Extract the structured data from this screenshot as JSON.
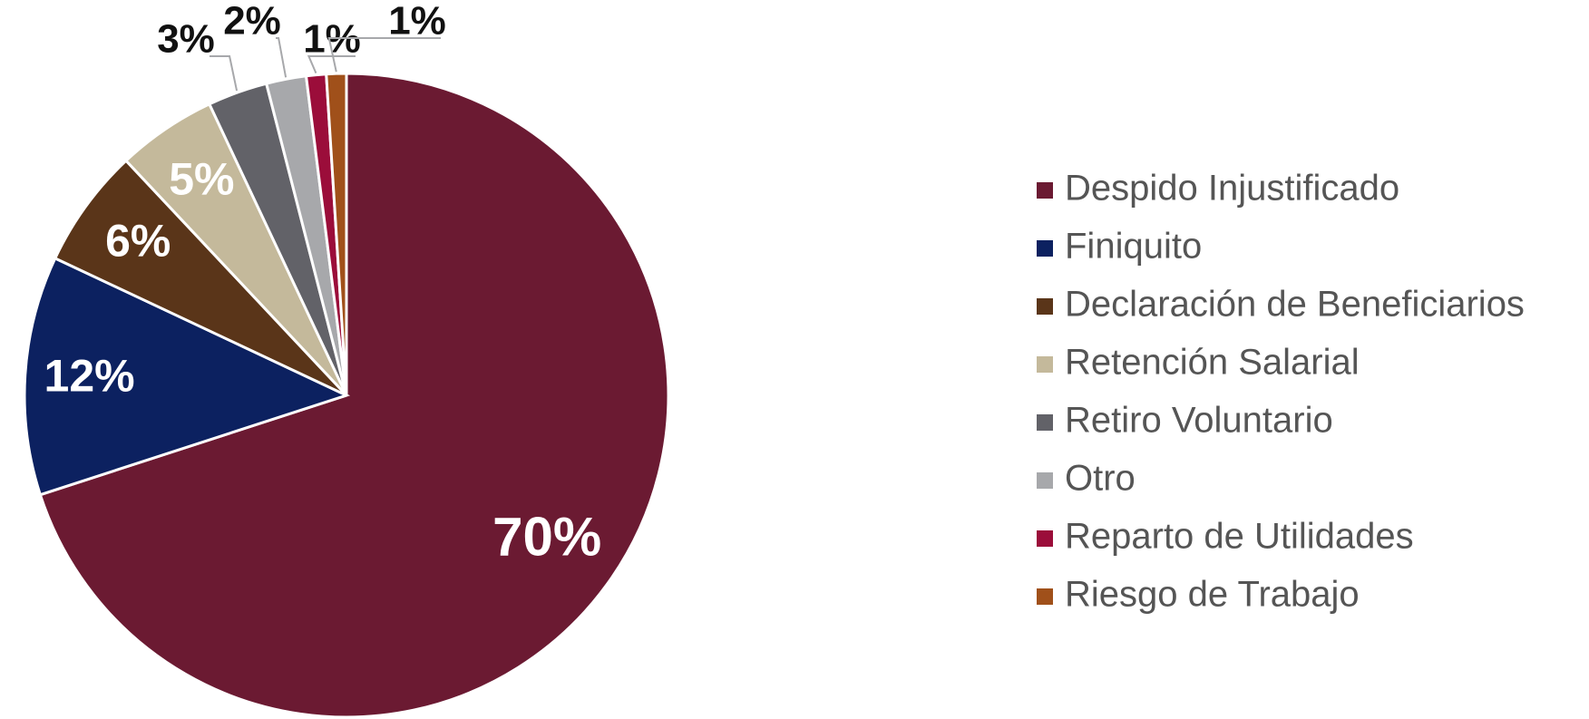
{
  "chart_data": {
    "type": "pie",
    "categories": [
      "Despido Injustificado",
      "Finiquito",
      "Declaración de Beneficiarios",
      "Retención Salarial",
      "Retiro Voluntario",
      "Otro",
      "Reparto de Utilidades",
      "Riesgo de Trabajo"
    ],
    "values": [
      70,
      12,
      6,
      5,
      3,
      2,
      1,
      1
    ],
    "value_labels": [
      "70%",
      "12%",
      "6%",
      "5%",
      "3%",
      "2%",
      "1%",
      "1%"
    ],
    "colors": [
      "#6b1a32",
      "#0c2160",
      "#5a3519",
      "#c4b99b",
      "#626268",
      "#a7a8ab",
      "#9b0d3a",
      "#a0501a"
    ],
    "legend": "right"
  }
}
